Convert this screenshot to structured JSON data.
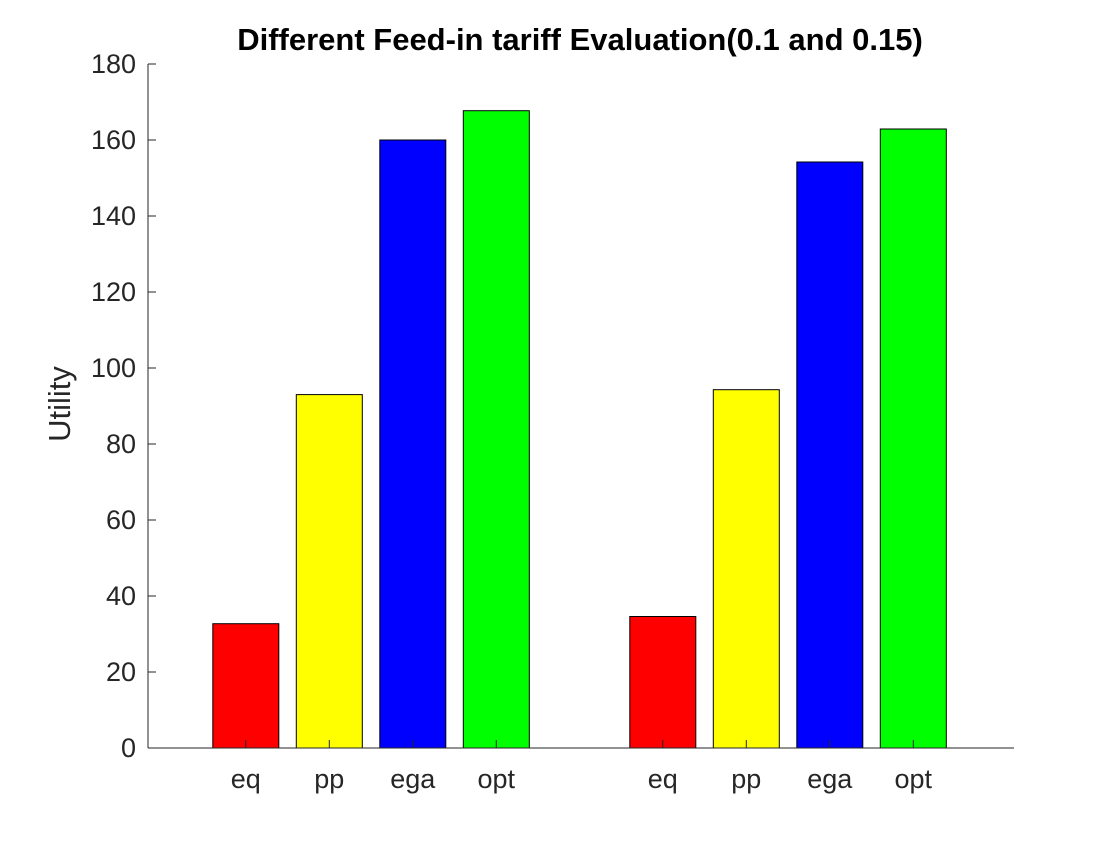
{
  "chart_data": {
    "type": "bar",
    "title": "Different Feed-in tariff Evaluation(0.1 and 0.15)",
    "xlabel": "",
    "ylabel": "Utility",
    "ylim": [
      0,
      180
    ],
    "yticks": [
      0,
      20,
      40,
      60,
      80,
      100,
      120,
      140,
      160,
      180
    ],
    "grid": false,
    "groups": [
      {
        "bars": [
          {
            "label": "eq",
            "value": 32.7,
            "color": "#ff0000"
          },
          {
            "label": "pp",
            "value": 93.0,
            "color": "#ffff00"
          },
          {
            "label": "ega",
            "value": 160.0,
            "color": "#0000ff"
          },
          {
            "label": "opt",
            "value": 167.7,
            "color": "#00ff00"
          }
        ]
      },
      {
        "bars": [
          {
            "label": "eq",
            "value": 34.6,
            "color": "#ff0000"
          },
          {
            "label": "pp",
            "value": 94.3,
            "color": "#ffff00"
          },
          {
            "label": "ega",
            "value": 154.2,
            "color": "#0000ff"
          },
          {
            "label": "opt",
            "value": 162.9,
            "color": "#00ff00"
          }
        ]
      }
    ]
  }
}
